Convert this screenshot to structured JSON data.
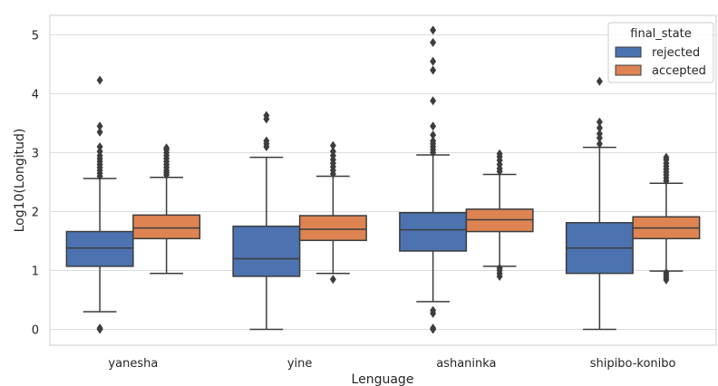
{
  "chart_data": {
    "type": "box",
    "xlabel": "Lenguage",
    "ylabel": "Log10(Longitud)",
    "ylim": [
      -0.27,
      5.33
    ],
    "yticks": [
      0,
      1,
      2,
      3,
      4,
      5
    ],
    "grid": true,
    "legend": {
      "title": "final_state",
      "placement": "top-right"
    },
    "categories": [
      "yanesha",
      "yine",
      "ashaninka",
      "shipibo-konibo"
    ],
    "series": [
      {
        "name": "rejected",
        "color": "#4c72b0",
        "boxes": [
          {
            "whislo": 0.3,
            "q1": 1.07,
            "med": 1.38,
            "q3": 1.66,
            "whishi": 2.56,
            "fliers": [
              0.0,
              0.02,
              2.6,
              2.65,
              2.7,
              2.75,
              2.8,
              2.85,
              2.9,
              2.95,
              3.02,
              3.1,
              3.35,
              3.45,
              4.23
            ]
          },
          {
            "whislo": 0.0,
            "q1": 0.9,
            "med": 1.2,
            "q3": 1.75,
            "whishi": 2.92,
            "fliers": [
              3.1,
              3.15,
              3.2,
              3.57,
              3.63
            ]
          },
          {
            "whislo": 0.47,
            "q1": 1.33,
            "med": 1.69,
            "q3": 1.98,
            "whishi": 2.96,
            "fliers": [
              0.0,
              0.02,
              0.27,
              0.32,
              3.0,
              3.05,
              3.1,
              3.15,
              3.2,
              3.3,
              3.45,
              3.88,
              4.4,
              4.55,
              4.87,
              5.08
            ]
          },
          {
            "whislo": 0.0,
            "q1": 0.95,
            "med": 1.38,
            "q3": 1.81,
            "whishi": 3.09,
            "fliers": [
              3.15,
              3.25,
              3.32,
              3.42,
              3.52,
              4.21
            ]
          }
        ]
      },
      {
        "name": "accepted",
        "color": "#dd8452",
        "boxes": [
          {
            "whislo": 0.95,
            "q1": 1.54,
            "med": 1.72,
            "q3": 1.94,
            "whishi": 2.58,
            "fliers": [
              2.62,
              2.66,
              2.7,
              2.75,
              2.8,
              2.85,
              2.9,
              2.95,
              3.0,
              3.05,
              3.08
            ]
          },
          {
            "whislo": 0.95,
            "q1": 1.51,
            "med": 1.7,
            "q3": 1.93,
            "whishi": 2.6,
            "fliers": [
              0.85,
              2.64,
              2.7,
              2.76,
              2.82,
              2.88,
              2.95,
              3.02,
              3.12
            ]
          },
          {
            "whislo": 1.07,
            "q1": 1.66,
            "med": 1.86,
            "q3": 2.04,
            "whishi": 2.63,
            "fliers": [
              0.9,
              0.95,
              1.0,
              1.04,
              2.68,
              2.73,
              2.8,
              2.87,
              2.93,
              2.98
            ]
          },
          {
            "whislo": 0.99,
            "q1": 1.54,
            "med": 1.72,
            "q3": 1.91,
            "whishi": 2.48,
            "fliers": [
              0.84,
              0.88,
              0.92,
              0.96,
              2.52,
              2.57,
              2.62,
              2.67,
              2.72,
              2.77,
              2.82,
              2.88,
              2.92
            ]
          }
        ]
      }
    ]
  }
}
